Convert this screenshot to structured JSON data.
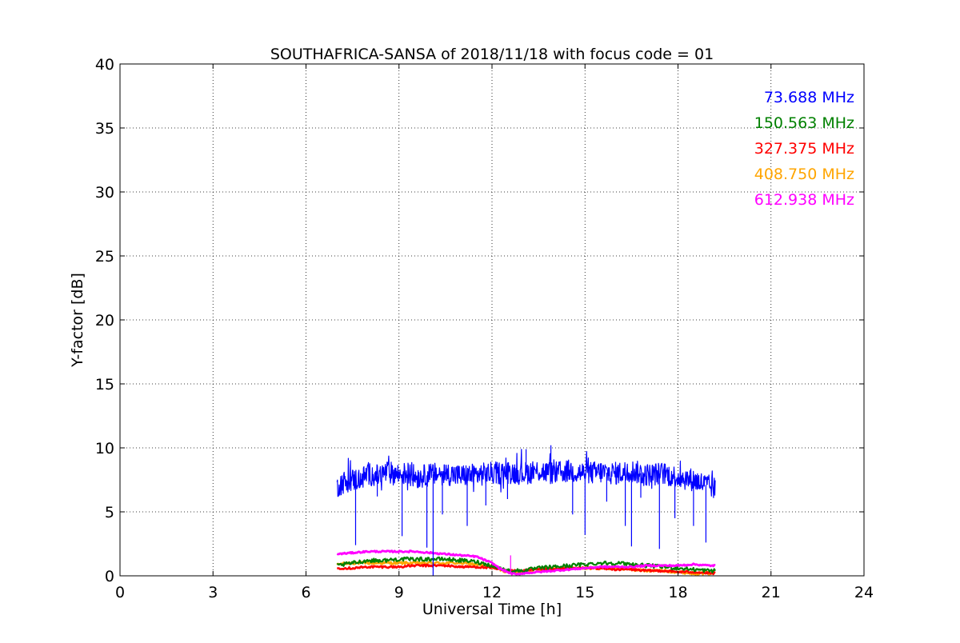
{
  "chart_data": {
    "type": "line",
    "title": "SOUTHAFRICA-SANSA of 2018/11/18 with focus code = 01",
    "xlabel": "Universal Time [h]",
    "ylabel": "Y-factor [dB]",
    "xlim": [
      0,
      24
    ],
    "ylim": [
      0,
      40
    ],
    "xticks": [
      0,
      3,
      6,
      9,
      12,
      15,
      18,
      21,
      24
    ],
    "yticks": [
      0,
      5,
      10,
      15,
      20,
      25,
      30,
      35,
      40
    ],
    "grid": true,
    "legend_position": "top-right",
    "series": [
      {
        "name": "73.688 MHz",
        "color": "#0000ff",
        "x": [
          7.0,
          7.2,
          7.5,
          7.8,
          8.0,
          8.3,
          8.6,
          9.0,
          9.3,
          9.6,
          10.0,
          10.5,
          11.0,
          11.5,
          12.0,
          12.5,
          13.0,
          13.5,
          14.0,
          14.5,
          15.0,
          15.5,
          16.0,
          16.5,
          17.0,
          17.5,
          18.0,
          18.5,
          19.0,
          19.2
        ],
        "y": [
          7.0,
          7.3,
          7.5,
          7.6,
          8.0,
          7.8,
          8.1,
          7.9,
          8.0,
          7.7,
          7.9,
          8.0,
          7.8,
          7.9,
          8.0,
          8.1,
          8.0,
          8.2,
          8.0,
          8.2,
          8.0,
          8.1,
          8.0,
          8.2,
          7.9,
          8.0,
          7.7,
          7.5,
          7.0,
          6.8
        ],
        "spikes": [
          [
            7.6,
            2.4
          ],
          [
            8.3,
            6.2
          ],
          [
            9.1,
            3.1
          ],
          [
            9.9,
            2.2
          ],
          [
            10.1,
            0.0
          ],
          [
            10.4,
            4.8
          ],
          [
            11.2,
            3.9
          ],
          [
            11.8,
            5.5
          ],
          [
            12.5,
            6.0
          ],
          [
            13.1,
            9.9
          ],
          [
            13.9,
            10.2
          ],
          [
            14.6,
            4.8
          ],
          [
            15.0,
            3.2
          ],
          [
            15.7,
            5.8
          ],
          [
            16.3,
            3.9
          ],
          [
            16.5,
            2.3
          ],
          [
            16.8,
            6.1
          ],
          [
            17.4,
            2.1
          ],
          [
            17.9,
            4.5
          ],
          [
            18.5,
            3.9
          ],
          [
            18.9,
            2.6
          ]
        ]
      },
      {
        "name": "150.563 MHz",
        "color": "#008000",
        "x": [
          7.0,
          7.5,
          8.0,
          8.5,
          9.0,
          9.5,
          10.0,
          10.5,
          11.0,
          11.5,
          12.0,
          12.5,
          13.0,
          13.5,
          14.0,
          14.5,
          15.0,
          15.5,
          16.0,
          16.5,
          17.0,
          17.5,
          18.0,
          18.5,
          19.0,
          19.2
        ],
        "y": [
          0.8,
          1.0,
          1.2,
          1.2,
          1.3,
          1.3,
          1.3,
          1.3,
          1.2,
          1.1,
          0.8,
          0.4,
          0.4,
          0.6,
          0.7,
          0.8,
          0.9,
          1.0,
          1.0,
          0.9,
          0.8,
          0.7,
          0.6,
          0.5,
          0.4,
          0.4
        ]
      },
      {
        "name": "327.375 MHz",
        "color": "#ff0000",
        "x": [
          7.0,
          7.5,
          8.0,
          8.5,
          9.0,
          9.5,
          10.0,
          10.5,
          11.0,
          11.5,
          12.0,
          12.5,
          13.0,
          13.5,
          14.0,
          14.5,
          15.0,
          15.5,
          16.0,
          16.5,
          17.0,
          17.5,
          18.0,
          18.5,
          19.0,
          19.2
        ],
        "y": [
          0.6,
          0.6,
          0.7,
          0.7,
          0.7,
          0.8,
          0.8,
          0.8,
          0.7,
          0.7,
          0.6,
          0.4,
          0.4,
          0.5,
          0.5,
          0.6,
          0.6,
          0.6,
          0.5,
          0.5,
          0.4,
          0.4,
          0.3,
          0.3,
          0.2,
          0.2
        ]
      },
      {
        "name": "408.750 MHz",
        "color": "#ffa500",
        "x": [
          7.0,
          7.5,
          8.0,
          8.5,
          9.0,
          9.5,
          10.0,
          10.5,
          11.0,
          11.5,
          12.0,
          12.5,
          13.0,
          13.5,
          14.0,
          14.5,
          15.0,
          15.5,
          16.0,
          16.5,
          17.0,
          17.5,
          18.0,
          18.5,
          19.0,
          19.2
        ],
        "y": [
          0.9,
          1.0,
          1.0,
          1.0,
          1.0,
          1.0,
          1.0,
          1.0,
          1.0,
          0.9,
          0.7,
          0.3,
          0.3,
          0.5,
          0.6,
          0.6,
          0.6,
          0.6,
          0.6,
          0.5,
          0.4,
          0.4,
          0.3,
          0.2,
          0.2,
          0.2
        ]
      },
      {
        "name": "612.938 MHz",
        "color": "#ff00ff",
        "x": [
          7.0,
          7.5,
          8.0,
          8.5,
          9.0,
          9.5,
          10.0,
          10.5,
          11.0,
          11.5,
          12.0,
          12.3,
          12.6,
          12.8,
          13.0,
          13.5,
          14.0,
          14.5,
          15.0,
          15.5,
          16.0,
          16.5,
          17.0,
          17.5,
          18.0,
          18.5,
          19.0,
          19.2
        ],
        "y": [
          1.7,
          1.8,
          1.9,
          1.9,
          1.9,
          1.9,
          1.8,
          1.7,
          1.6,
          1.5,
          1.0,
          0.5,
          0.2,
          0.1,
          0.2,
          0.3,
          0.4,
          0.5,
          0.6,
          0.7,
          0.7,
          0.7,
          0.8,
          0.8,
          0.8,
          0.9,
          0.8,
          0.8
        ]
      }
    ]
  }
}
